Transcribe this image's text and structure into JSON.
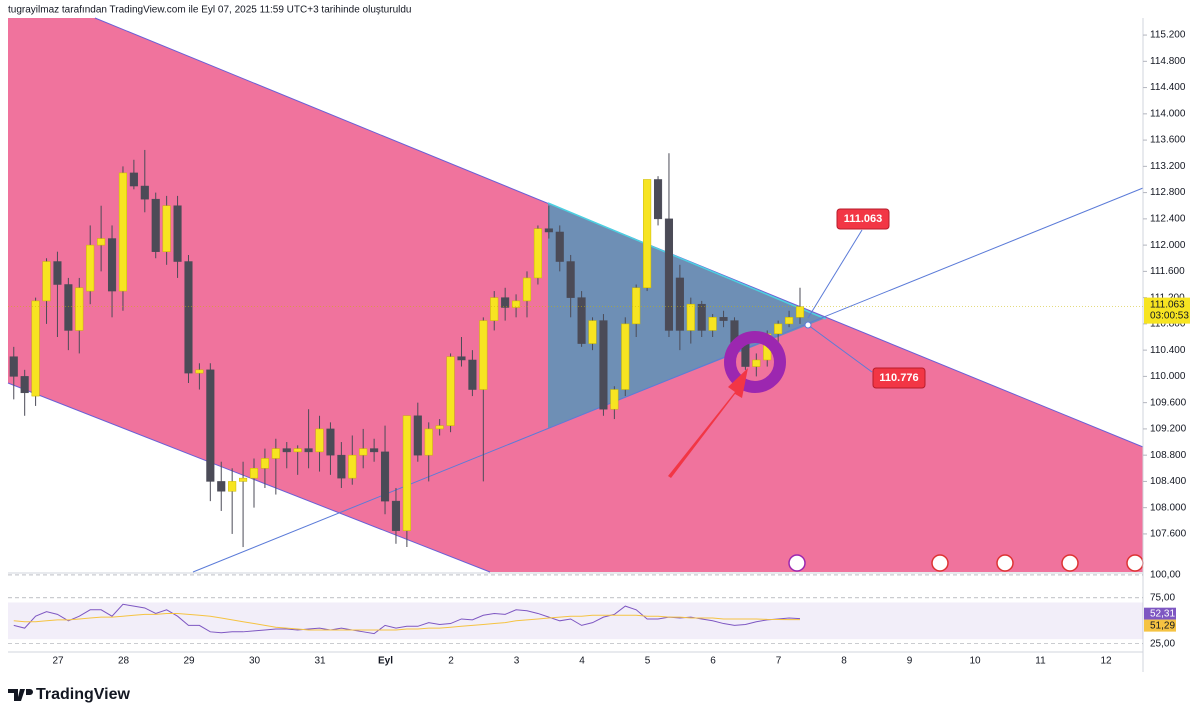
{
  "header": "tugrayilmaz tarafından TradingView.com ile Eyl 07, 2025 11:59 UTC+3 tarihinde oluşturuldu",
  "logo": "TradingView",
  "chart_data": {
    "type": "candlestick",
    "up_color": "#f7e421",
    "down_color": "#4b4b57",
    "open": [
      110.3,
      110.0,
      109.7,
      111.15,
      111.75,
      111.4,
      110.7,
      111.3,
      112.0,
      112.1,
      111.3,
      113.1,
      112.9,
      112.7,
      111.9,
      112.6,
      111.75,
      110.05,
      110.1,
      108.4,
      108.25,
      108.4,
      108.45,
      108.6,
      108.75,
      108.9,
      108.85,
      108.9,
      108.85,
      109.2,
      108.8,
      108.45,
      108.8,
      108.9,
      108.85,
      108.1,
      107.65,
      109.4,
      108.8,
      109.2,
      109.25,
      110.3,
      110.25,
      109.8,
      110.85,
      111.2,
      111.05,
      111.15,
      111.5,
      112.25,
      112.2,
      111.75,
      111.2,
      110.5,
      110.85,
      109.5,
      109.8,
      110.8,
      111.35,
      113.0,
      112.4,
      111.5,
      110.7,
      111.1,
      110.7,
      110.9,
      110.85,
      110.5,
      110.15,
      110.25,
      110.65,
      110.8,
      110.9
    ],
    "high": [
      110.45,
      110.1,
      111.2,
      111.8,
      111.9,
      111.5,
      111.5,
      112.3,
      112.6,
      112.3,
      113.2,
      113.3,
      113.45,
      112.8,
      112.75,
      112.75,
      111.85,
      110.2,
      110.2,
      108.7,
      108.6,
      108.7,
      108.75,
      108.9,
      109.05,
      109.0,
      108.95,
      109.5,
      109.4,
      109.3,
      109.0,
      109.1,
      109.2,
      109.05,
      109.25,
      108.3,
      109.4,
      109.6,
      109.3,
      109.35,
      110.35,
      110.6,
      110.4,
      110.9,
      111.3,
      111.35,
      111.25,
      111.6,
      112.3,
      112.6,
      112.3,
      111.85,
      111.3,
      110.9,
      110.95,
      109.85,
      110.9,
      111.4,
      113.0,
      113.05,
      113.4,
      111.7,
      111.2,
      111.15,
      110.95,
      111.0,
      110.9,
      110.6,
      110.35,
      110.7,
      110.85,
      111.0,
      111.35
    ],
    "low": [
      109.65,
      109.4,
      109.55,
      110.8,
      110.6,
      110.4,
      110.35,
      111.1,
      111.6,
      110.9,
      111.0,
      112.85,
      112.5,
      111.8,
      111.7,
      111.5,
      109.9,
      109.8,
      108.1,
      107.95,
      107.6,
      107.4,
      108.0,
      108.3,
      108.2,
      108.6,
      108.5,
      108.6,
      108.55,
      108.5,
      108.3,
      108.35,
      108.6,
      108.7,
      107.9,
      107.45,
      107.4,
      108.7,
      108.4,
      109.1,
      109.15,
      110.15,
      109.7,
      108.4,
      110.7,
      110.85,
      110.9,
      110.9,
      111.4,
      112.1,
      111.6,
      110.9,
      110.45,
      110.4,
      109.4,
      109.35,
      109.7,
      110.6,
      111.3,
      112.3,
      110.6,
      110.4,
      110.5,
      110.6,
      110.6,
      110.75,
      110.45,
      110.1,
      110.0,
      110.15,
      110.5,
      110.75,
      110.8
    ],
    "close": [
      110.0,
      109.75,
      111.15,
      111.75,
      111.4,
      110.7,
      111.35,
      112.0,
      112.1,
      111.3,
      113.1,
      112.9,
      112.7,
      111.9,
      112.6,
      111.75,
      110.05,
      110.1,
      108.4,
      108.25,
      108.4,
      108.45,
      108.6,
      108.75,
      108.9,
      108.85,
      108.9,
      108.85,
      109.2,
      108.8,
      108.45,
      108.8,
      108.9,
      108.85,
      108.1,
      107.65,
      109.4,
      108.8,
      109.2,
      109.25,
      110.3,
      110.25,
      109.8,
      110.85,
      111.2,
      111.05,
      111.15,
      111.5,
      112.25,
      112.2,
      111.75,
      111.2,
      110.5,
      110.85,
      109.5,
      109.8,
      110.8,
      111.35,
      113.0,
      112.4,
      110.7,
      110.7,
      111.1,
      110.7,
      110.9,
      110.85,
      110.5,
      110.15,
      110.25,
      110.65,
      110.8,
      110.9,
      111.063
    ],
    "xtick_labels": [
      "27",
      "28",
      "29",
      "30",
      "31",
      "Eyl",
      "2",
      "3",
      "4",
      "5",
      "6",
      "7",
      "8",
      "9",
      "10",
      "11",
      "12"
    ],
    "ylim": [
      107.02,
      115.46
    ],
    "yticks": [
      {
        "value": 115.2,
        "label": "115.200"
      },
      {
        "value": 114.8,
        "label": "114.800"
      },
      {
        "value": 114.4,
        "label": "114.400"
      },
      {
        "value": 114.0,
        "label": "114.000"
      },
      {
        "value": 113.6,
        "label": "113.600"
      },
      {
        "value": 113.2,
        "label": "113.200"
      },
      {
        "value": 112.8,
        "label": "112.800"
      },
      {
        "value": 112.4,
        "label": "112.400"
      },
      {
        "value": 112.0,
        "label": "112.000"
      },
      {
        "value": 111.6,
        "label": "111.600"
      },
      {
        "value": 111.2,
        "label": "111.200"
      },
      {
        "value": 110.8,
        "label": "110.800"
      },
      {
        "value": 110.4,
        "label": "110.400"
      },
      {
        "value": 110.0,
        "label": "110.000"
      },
      {
        "value": 109.6,
        "label": "109.600"
      },
      {
        "value": 109.2,
        "label": "109.200"
      },
      {
        "value": 108.8,
        "label": "108.800"
      },
      {
        "value": 108.4,
        "label": "108.400"
      },
      {
        "value": 108.0,
        "label": "108.000"
      },
      {
        "value": 107.6,
        "label": "107.600"
      }
    ],
    "last_price": {
      "value": 111.063,
      "label": "111.063",
      "countdown": "03:00:53"
    },
    "annotations": [
      {
        "value": 111.063,
        "label": "111.063"
      },
      {
        "value": 110.776,
        "label": "110.776"
      }
    ],
    "rsi": {
      "ylim": [
        16,
        101
      ],
      "yticks": [
        {
          "value": 100,
          "label": "100,00"
        },
        {
          "value": 75,
          "label": "75,00"
        },
        {
          "value": 25,
          "label": "25,00"
        }
      ],
      "series": [
        {
          "color": "#7e57c2",
          "last_label": "52,31",
          "values": [
            45,
            42,
            55,
            60,
            57,
            50,
            55,
            62,
            62,
            55,
            68,
            66,
            64,
            58,
            62,
            55,
            45,
            45,
            38,
            37,
            38,
            38,
            39,
            40,
            41,
            41,
            40,
            41,
            42,
            40,
            42,
            40,
            38,
            36,
            45,
            42,
            44,
            44,
            48,
            46,
            47,
            52,
            51,
            56,
            58,
            57,
            62,
            61,
            58,
            54,
            50,
            52,
            45,
            48,
            54,
            57,
            66,
            62,
            52,
            52,
            54,
            53,
            54,
            52,
            50,
            47,
            45,
            46,
            49,
            51,
            52,
            53,
            52.31
          ]
        },
        {
          "color": "#f5c342",
          "last_label": "51,29",
          "values": [
            50,
            49,
            49,
            50,
            51,
            51,
            52,
            53,
            54,
            54,
            55,
            56,
            57,
            57,
            58,
            58,
            57,
            56,
            55,
            53,
            51,
            49,
            47,
            45,
            43,
            42,
            41,
            40,
            40,
            40,
            40,
            40,
            40,
            40,
            40,
            40,
            41,
            41,
            42,
            42,
            43,
            44,
            45,
            46,
            47,
            48,
            50,
            51,
            52,
            53,
            54,
            55,
            55,
            56,
            56,
            56,
            56,
            56,
            55,
            55,
            54,
            54,
            53,
            53,
            53,
            52,
            52,
            52,
            52,
            51.5,
            51.4,
            51.3,
            51.29
          ]
        }
      ]
    }
  }
}
